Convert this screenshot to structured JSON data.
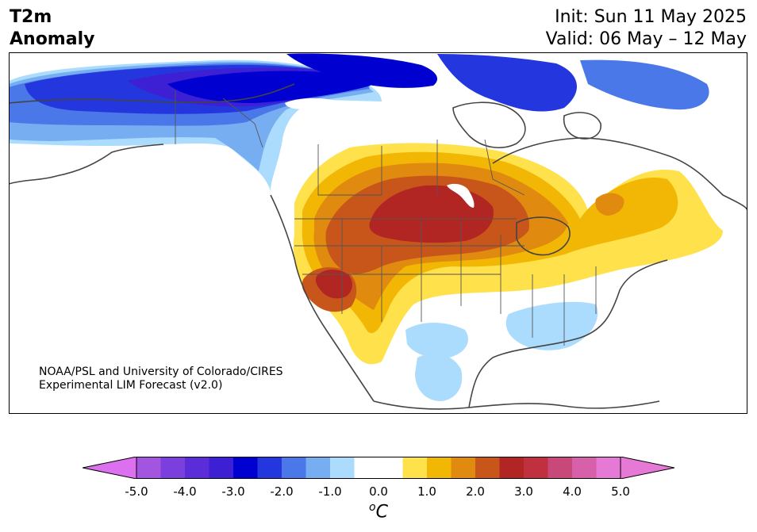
{
  "title": {
    "variable_line1": "T2m",
    "variable_line2": "Anomaly",
    "init": "Init: Sun 11 May 2025",
    "valid": "Valid: 06 May – 12 May"
  },
  "credit": {
    "line1": "NOAA/PSL and University of Colorado/CIRES",
    "line2": "Experimental LIM Forecast (v2.0)"
  },
  "colorbar": {
    "unit_base": "C",
    "unit_sup": "o",
    "ticks": [
      "-5.0",
      "-4.0",
      "-3.0",
      "-2.0",
      "-1.0",
      "0.0",
      "1.0",
      "2.0",
      "3.0",
      "4.0",
      "5.0"
    ],
    "tick_values": [
      -5,
      -4,
      -3,
      -2,
      -1,
      0,
      1,
      2,
      3,
      4,
      5
    ],
    "bins": [
      {
        "from": -5.0,
        "to": -4.5,
        "color": "#a455e0"
      },
      {
        "from": -4.5,
        "to": -4.0,
        "color": "#7a3fdd"
      },
      {
        "from": -4.0,
        "to": -3.5,
        "color": "#5a2dd8"
      },
      {
        "from": -3.5,
        "to": -3.0,
        "color": "#3d1fd4"
      },
      {
        "from": -3.0,
        "to": -2.5,
        "color": "#0000d0"
      },
      {
        "from": -2.5,
        "to": -2.0,
        "color": "#2437de"
      },
      {
        "from": -2.0,
        "to": -1.5,
        "color": "#4a78e8"
      },
      {
        "from": -1.5,
        "to": -1.0,
        "color": "#77aef2"
      },
      {
        "from": -1.0,
        "to": -0.5,
        "color": "#abdcfd"
      },
      {
        "from": -0.5,
        "to": 0.5,
        "color": "#ffffff"
      },
      {
        "from": 0.5,
        "to": 1.0,
        "color": "#ffe14c"
      },
      {
        "from": 1.0,
        "to": 1.5,
        "color": "#f2b705"
      },
      {
        "from": 1.5,
        "to": 2.0,
        "color": "#e08a10"
      },
      {
        "from": 2.0,
        "to": 2.5,
        "color": "#c8561a"
      },
      {
        "from": 2.5,
        "to": 3.0,
        "color": "#b12623"
      },
      {
        "from": 3.0,
        "to": 3.5,
        "color": "#c0303e"
      },
      {
        "from": 3.5,
        "to": 4.0,
        "color": "#c8487a"
      },
      {
        "from": 4.0,
        "to": 4.5,
        "color": "#d760ab"
      },
      {
        "from": 4.5,
        "to": 5.0,
        "color": "#e679d6"
      }
    ],
    "below_color": "#dc70ee",
    "above_color": "#e679d6"
  },
  "colors": {
    "land_outline": "#444444",
    "state_line": "#555555",
    "frame": "#000000"
  }
}
